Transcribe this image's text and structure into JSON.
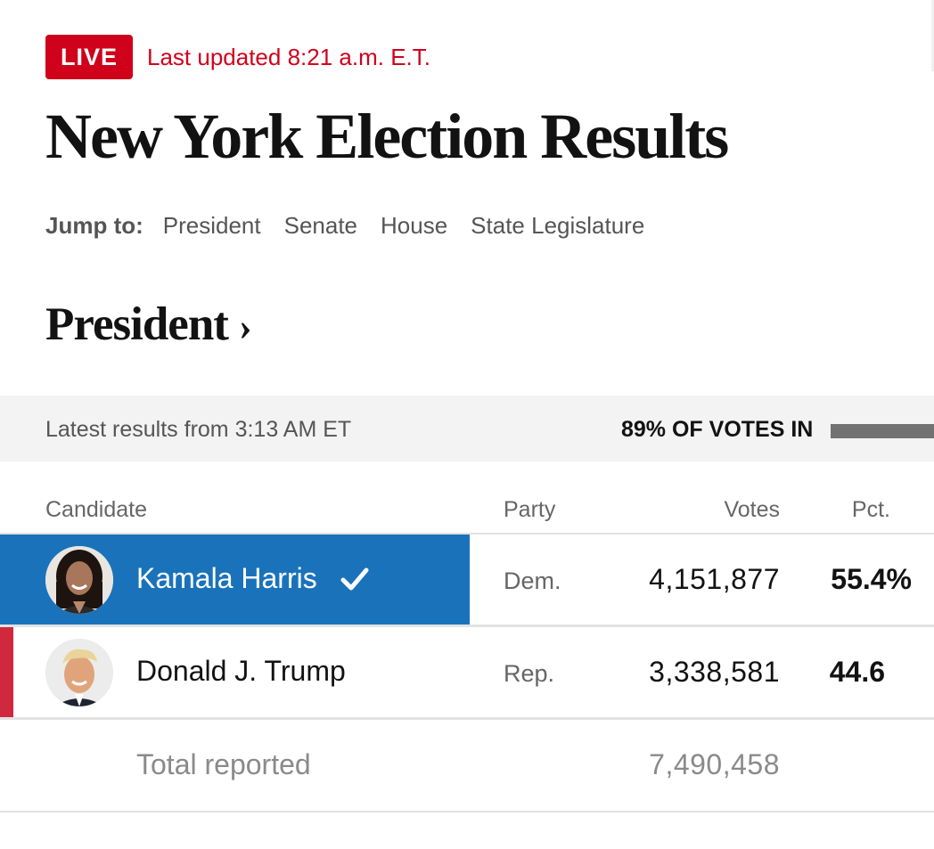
{
  "live": {
    "badge": "LIVE",
    "updated": "Last updated 8:21 a.m. E.T."
  },
  "title": "New York Election Results",
  "jump_nav": {
    "label": "Jump to:",
    "links": [
      "President",
      "Senate",
      "House",
      "State Legislature"
    ]
  },
  "section": {
    "heading": "President",
    "chevron": "›"
  },
  "results_bar": {
    "latest": "Latest results from 3:13 AM ET",
    "votes_in": "89% OF VOTES IN",
    "votes_in_fraction": 0.89
  },
  "table": {
    "headers": {
      "candidate": "Candidate",
      "party": "Party",
      "votes": "Votes",
      "pct": "Pct."
    },
    "rows": [
      {
        "name": "Kamala Harris",
        "party": "Dem.",
        "votes": "4,151,877",
        "pct": "55.4%",
        "winner": true,
        "avatar": "kamala-harris-photo"
      },
      {
        "name": "Donald J. Trump",
        "party": "Rep.",
        "votes": "3,338,581",
        "pct": "44.6",
        "winner": false,
        "avatar": "donald-trump-photo"
      }
    ],
    "total": {
      "label": "Total reported",
      "votes": "7,490,458"
    }
  },
  "colors": {
    "live_red": "#d0021b",
    "dem_blue": "#1a73ba",
    "rep_red": "#d0283d",
    "bar_gray": "#f3f3f3"
  },
  "icons": [
    "checkmark-icon",
    "chevron-right-icon"
  ]
}
